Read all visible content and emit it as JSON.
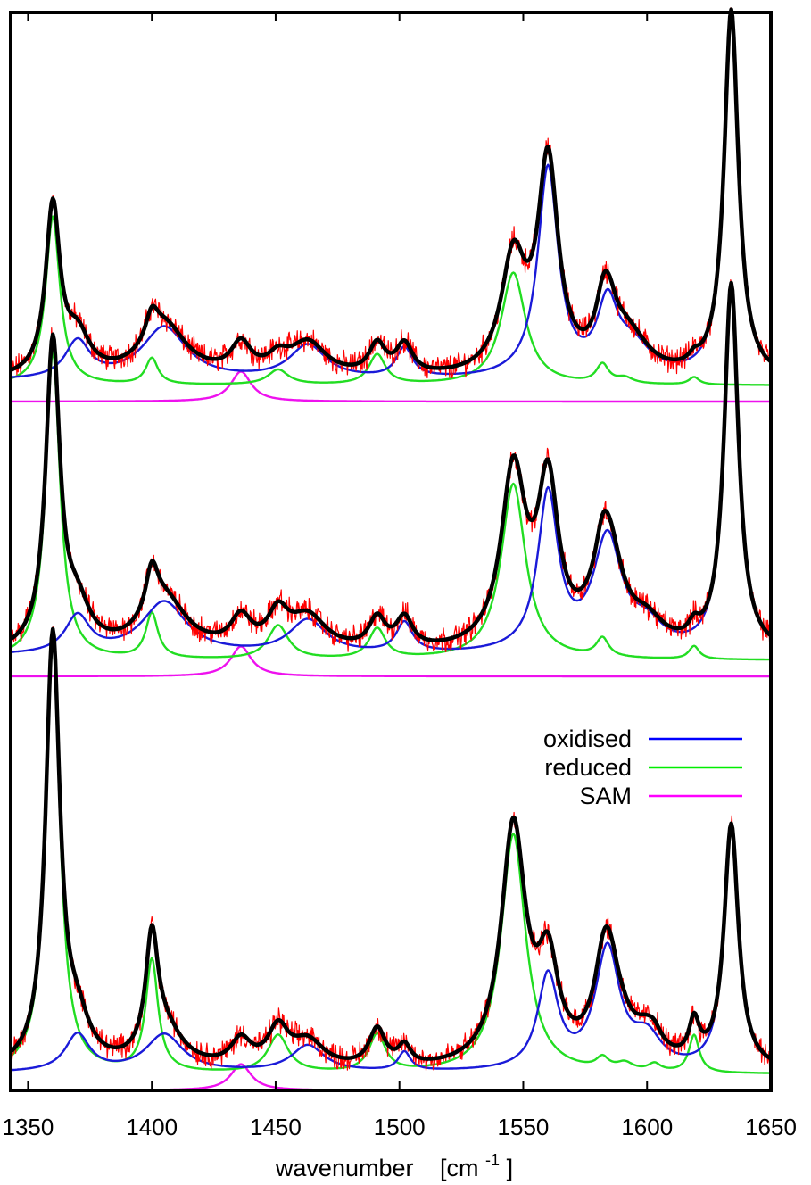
{
  "chart_data": {
    "type": "line",
    "xlabel": "wavenumber",
    "xlabel_unit_prefix": "[cm",
    "xlabel_unit_exp": "-1",
    "xlabel_unit_suffix": "]",
    "xlim": [
      1343,
      1650
    ],
    "xticks": [
      "1350",
      "1400",
      "1450",
      "1500",
      "1550",
      "1600",
      "1650"
    ],
    "grid": false,
    "legend_position": "inside-right (bottom panel)",
    "legend": [
      {
        "name": "oxidised",
        "color": "#0000ff"
      },
      {
        "name": "reduced",
        "color": "#00ee00"
      },
      {
        "name": "SAM",
        "color": "#ff00ff"
      }
    ],
    "colors": {
      "measured": "#ff0000",
      "fit": "#000000",
      "oxidised": "#1a1ad8",
      "reduced": "#22dd22",
      "SAM": "#ee11ee"
    },
    "panels": [
      {
        "ox": {
          "base": 0.012,
          "peaks": [
            [
              1370,
              0.1,
              6
            ],
            [
              1405,
              0.14,
              11
            ],
            [
              1463,
              0.09,
              9
            ],
            [
              1502,
              0.08,
              4
            ],
            [
              1560,
              0.56,
              5
            ],
            [
              1584,
              0.18,
              5
            ],
            [
              1594,
              0.08,
              9
            ],
            [
              1634,
              0.98,
              3.5
            ]
          ]
        },
        "red": {
          "base": 0.0,
          "peaks": [
            [
              1360,
              0.45,
              3.5
            ],
            [
              1400,
              0.07,
              3
            ],
            [
              1451,
              0.04,
              5
            ],
            [
              1491,
              0.08,
              4
            ],
            [
              1546,
              0.3,
              6
            ],
            [
              1582,
              0.05,
              3
            ],
            [
              1591,
              0.015,
              4
            ],
            [
              1619,
              0.02,
              2.5
            ]
          ]
        },
        "sam": {
          "peaks": [
            [
              1436,
              0.08,
              5
            ]
          ]
        }
      },
      {
        "ox": {
          "base": 0.012,
          "peaks": [
            [
              1370,
              0.1,
              6
            ],
            [
              1405,
              0.14,
              11
            ],
            [
              1463,
              0.09,
              9
            ],
            [
              1502,
              0.08,
              4
            ],
            [
              1560,
              0.42,
              5
            ],
            [
              1584,
              0.3,
              7
            ],
            [
              1600,
              0.06,
              8
            ],
            [
              1634,
              0.98,
              3.5
            ]
          ]
        },
        "red": {
          "base": 0.0,
          "peaks": [
            [
              1360,
              0.82,
              3.5
            ],
            [
              1400,
              0.12,
              3
            ],
            [
              1451,
              0.09,
              5
            ],
            [
              1491,
              0.08,
              4
            ],
            [
              1546,
              0.47,
              6
            ],
            [
              1582,
              0.05,
              3
            ],
            [
              1619,
              0.035,
              2.5
            ]
          ]
        },
        "sam": {
          "peaks": [
            [
              1436,
              0.08,
              5
            ]
          ]
        }
      },
      {
        "ox": {
          "base": 0.004,
          "peaks": [
            [
              1370,
              0.1,
              6
            ],
            [
              1405,
              0.1,
              9
            ],
            [
              1463,
              0.07,
              8
            ],
            [
              1502,
              0.05,
              3
            ],
            [
              1560,
              0.25,
              5
            ],
            [
              1584,
              0.32,
              6
            ],
            [
              1600,
              0.08,
              7
            ],
            [
              1634,
              0.65,
              3.5
            ]
          ]
        },
        "red": {
          "base": 0.0,
          "peaks": [
            [
              1360,
              1.15,
              3.5
            ],
            [
              1400,
              0.3,
              3
            ],
            [
              1451,
              0.1,
              5
            ],
            [
              1491,
              0.1,
              4
            ],
            [
              1546,
              0.64,
              6
            ],
            [
              1582,
              0.03,
              3
            ],
            [
              1591,
              0.02,
              4
            ],
            [
              1603,
              0.02,
              3
            ],
            [
              1619,
              0.1,
              2.5
            ]
          ]
        },
        "sam": {
          "peaks": [
            [
              1436,
              0.07,
              5
            ]
          ]
        }
      }
    ]
  }
}
